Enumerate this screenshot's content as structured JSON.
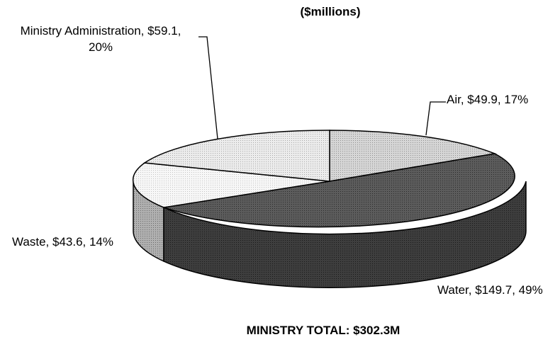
{
  "chart_data": {
    "type": "pie",
    "title": "($millions)",
    "slices": [
      {
        "name": "Air",
        "value": 49.9,
        "percent": 17,
        "label": "Air, $49.9, 17%",
        "fill": "#c8c8c8"
      },
      {
        "name": "Water",
        "value": 149.7,
        "percent": 49,
        "label": "Water, $149.7, 49%",
        "fill": "#5a5a5a"
      },
      {
        "name": "Waste",
        "value": 43.6,
        "percent": 14,
        "label": "Waste, $43.6, 14%",
        "fill": "#f2f2f2"
      },
      {
        "name": "Ministry Administration",
        "value": 59.1,
        "percent": 20,
        "label_lines": [
          "Ministry Administration, $59.1,",
          "20%"
        ],
        "fill": "#dcdcdc"
      }
    ],
    "total_label": "MINISTRY TOTAL: $302.3M",
    "style": "3d-pie"
  }
}
